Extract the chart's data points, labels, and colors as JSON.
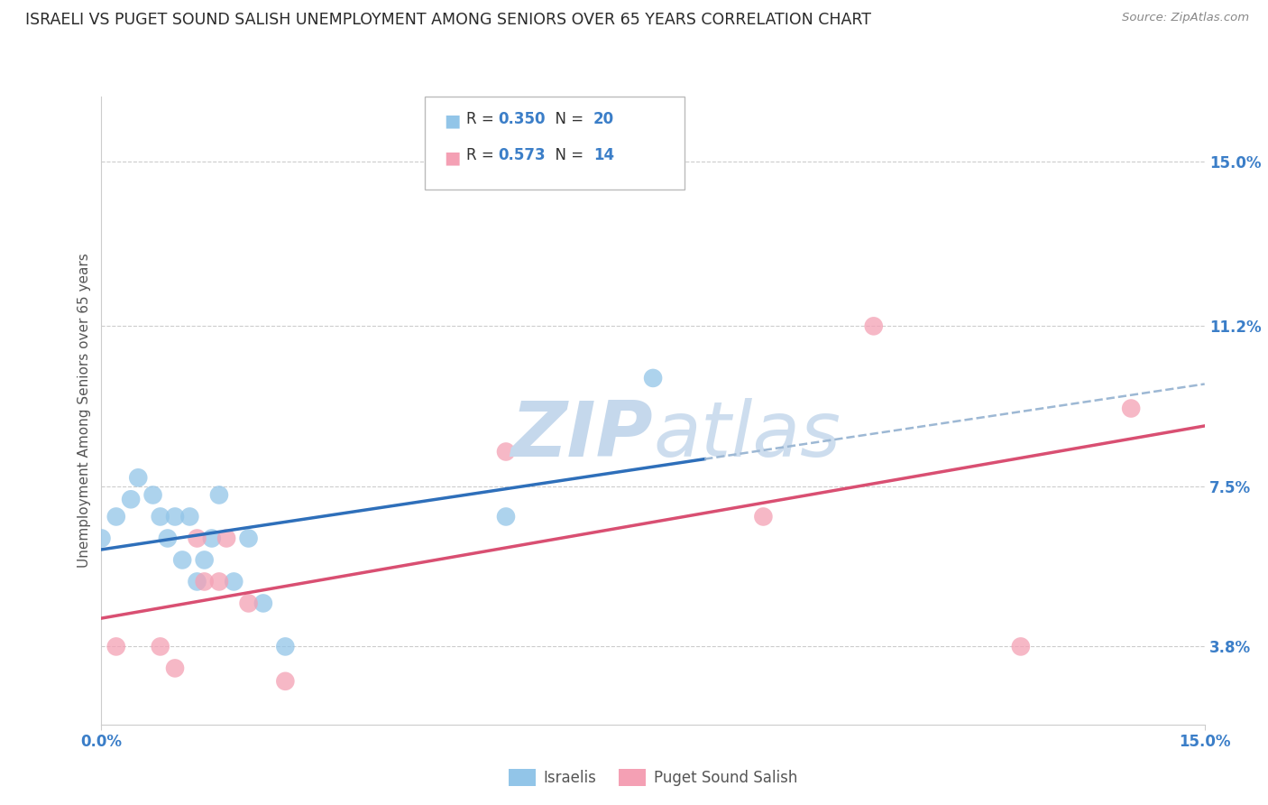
{
  "title": "ISRAELI VS PUGET SOUND SALISH UNEMPLOYMENT AMONG SENIORS OVER 65 YEARS CORRELATION CHART",
  "source": "Source: ZipAtlas.com",
  "ylabel": "Unemployment Among Seniors over 65 years",
  "ytick_labels": [
    "3.8%",
    "7.5%",
    "11.2%",
    "15.0%"
  ],
  "ytick_values": [
    0.038,
    0.075,
    0.112,
    0.15
  ],
  "xlabel_ticks": [
    "0.0%",
    "15.0%"
  ],
  "xmin": 0.0,
  "xmax": 0.15,
  "ymin": 0.02,
  "ymax": 0.165,
  "color_blue": "#92C5E8",
  "color_pink": "#F4A0B4",
  "line_blue": "#2E6FBA",
  "line_pink": "#D94F72",
  "line_dashed": "#9DB8D4",
  "watermark_color": "#C5D8EC",
  "title_color": "#2a2a2a",
  "source_color": "#888888",
  "label_color": "#3B7EC8",
  "israelis_x": [
    0.0,
    0.002,
    0.004,
    0.005,
    0.007,
    0.008,
    0.009,
    0.01,
    0.011,
    0.012,
    0.013,
    0.014,
    0.015,
    0.016,
    0.018,
    0.02,
    0.022,
    0.025,
    0.055,
    0.075
  ],
  "israelis_y": [
    0.063,
    0.068,
    0.072,
    0.077,
    0.073,
    0.068,
    0.063,
    0.068,
    0.058,
    0.068,
    0.053,
    0.058,
    0.063,
    0.073,
    0.053,
    0.063,
    0.048,
    0.038,
    0.068,
    0.1
  ],
  "puget_x": [
    0.002,
    0.008,
    0.01,
    0.013,
    0.014,
    0.016,
    0.017,
    0.02,
    0.025,
    0.055,
    0.09,
    0.105,
    0.125,
    0.14
  ],
  "puget_y": [
    0.038,
    0.038,
    0.033,
    0.063,
    0.053,
    0.053,
    0.063,
    0.048,
    0.03,
    0.083,
    0.068,
    0.112,
    0.038,
    0.093
  ],
  "dot_size": 220,
  "bottom_legend_items": [
    "Israelis",
    "Puget Sound Salish"
  ]
}
